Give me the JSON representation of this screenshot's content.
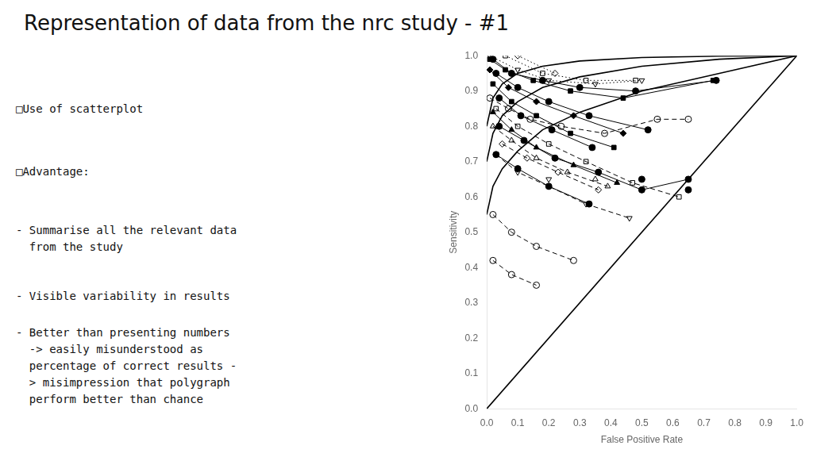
{
  "chart_data": {
    "type": "line",
    "title": "Representation of data from the nrc study - #1",
    "annotations": [
      "□Use of scatterplot",
      "□Advantage:",
      "- Summarise all the relevant data\n  from the study",
      "- Visible variability in results",
      "- Better than presenting numbers\n  -> easily misunderstood as\n  percentage of correct results -\n  > misimpression that polygraph\n  perform better than chance"
    ],
    "x_label": "False Positive Rate",
    "y_label": "Sensitivity",
    "color": "#000000",
    "grid": false,
    "xlim": [
      0,
      1
    ],
    "ylim": [
      0,
      1
    ],
    "xticks": [
      {
        "value": 0,
        "label": "0.0"
      },
      0.1,
      0.2,
      0.3,
      0.4,
      0.5,
      0.6,
      0.7,
      0.8,
      0.9,
      {
        "value": 1,
        "label": "1.0"
      }
    ],
    "yticks": [
      {
        "value": 0,
        "label": "0.0"
      },
      0.1,
      0.2,
      0.3,
      0.4,
      0.5,
      0.6,
      0.7,
      0.8,
      0.9,
      {
        "value": 1,
        "label": "1.0"
      }
    ],
    "series": [
      {
        "x": [
          0,
          1
        ],
        "values": [
          0,
          1
        ],
        "line_style": "solid",
        "marker": "none"
      },
      {
        "x": [
          0.0,
          0.02,
          0.05,
          0.1,
          0.18,
          0.3,
          0.5,
          0.75,
          1.0
        ],
        "values": [
          0.8,
          0.88,
          0.92,
          0.95,
          0.97,
          0.985,
          0.995,
          0.999,
          1.0
        ],
        "line_style": "solid",
        "marker": "none"
      },
      {
        "x": [
          0.0,
          0.02,
          0.05,
          0.1,
          0.18,
          0.3,
          0.5,
          0.75,
          1.0
        ],
        "values": [
          0.7,
          0.78,
          0.83,
          0.87,
          0.91,
          0.94,
          0.97,
          0.99,
          1.0
        ],
        "line_style": "solid",
        "marker": "none"
      },
      {
        "x": [
          0.0,
          0.02,
          0.05,
          0.1,
          0.18,
          0.3,
          0.5,
          0.75,
          1.0
        ],
        "values": [
          0.55,
          0.63,
          0.68,
          0.73,
          0.79,
          0.84,
          0.9,
          0.95,
          1.0
        ],
        "line_style": "solid",
        "marker": "none"
      },
      {
        "x": [
          0.01,
          0.1,
          0.2,
          0.35,
          0.5
        ],
        "values": [
          1.0,
          0.96,
          0.93,
          0.92,
          0.93
        ],
        "line_style": "dotted",
        "marker": "open-triangle-down"
      },
      {
        "x": [
          0.06,
          0.18,
          0.32,
          0.48
        ],
        "values": [
          1.0,
          0.95,
          0.93,
          0.93
        ],
        "line_style": "dotted",
        "marker": "open-square"
      },
      {
        "x": [
          0.1,
          0.22
        ],
        "values": [
          1.0,
          0.95
        ],
        "line_style": "dotted",
        "marker": "open-diamond"
      },
      {
        "x": [
          0.01,
          0.07,
          0.14,
          0.24,
          0.38,
          0.55,
          0.65
        ],
        "values": [
          0.88,
          0.85,
          0.82,
          0.8,
          0.78,
          0.82,
          0.82
        ],
        "line_style": "dashed",
        "marker": "open-circle"
      },
      {
        "x": [
          0.03,
          0.1,
          0.2,
          0.32,
          0.47,
          0.62
        ],
        "values": [
          0.85,
          0.8,
          0.75,
          0.7,
          0.64,
          0.6
        ],
        "line_style": "dashed",
        "marker": "open-square"
      },
      {
        "x": [
          0.02,
          0.08,
          0.16,
          0.26,
          0.39
        ],
        "values": [
          0.8,
          0.76,
          0.71,
          0.67,
          0.63
        ],
        "line_style": "dashed",
        "marker": "open-triangle-up"
      },
      {
        "x": [
          0.05,
          0.13,
          0.23,
          0.36
        ],
        "values": [
          0.75,
          0.71,
          0.67,
          0.62
        ],
        "line_style": "dashed",
        "marker": "open-diamond"
      },
      {
        "x": [
          0.03,
          0.1,
          0.2,
          0.32,
          0.46
        ],
        "values": [
          0.72,
          0.67,
          0.63,
          0.58,
          0.54
        ],
        "line_style": "dashed",
        "marker": "open-triangle-down"
      },
      {
        "x": [
          0.02,
          0.08,
          0.16,
          0.28
        ],
        "values": [
          0.55,
          0.5,
          0.46,
          0.42
        ],
        "line_style": "dashed",
        "marker": "open-circle"
      },
      {
        "x": [
          0.02,
          0.08,
          0.16
        ],
        "values": [
          0.42,
          0.38,
          0.35
        ],
        "line_style": "dashed",
        "marker": "open-circle"
      },
      {
        "x": [
          0.02,
          0.08,
          0.18,
          0.3,
          0.48,
          0.74
        ],
        "values": [
          0.99,
          0.95,
          0.93,
          0.91,
          0.9,
          0.93
        ],
        "line_style": "solid",
        "marker": "circle"
      },
      {
        "x": [
          0.03,
          0.1,
          0.2,
          0.33,
          0.52
        ],
        "values": [
          0.95,
          0.91,
          0.87,
          0.83,
          0.79
        ],
        "line_style": "solid",
        "marker": "circle"
      },
      {
        "x": [
          0.04,
          0.11,
          0.21,
          0.34
        ],
        "values": [
          0.88,
          0.83,
          0.79,
          0.74
        ],
        "line_style": "solid",
        "marker": "circle"
      },
      {
        "x": [
          0.04,
          0.12,
          0.22,
          0.36,
          0.5,
          0.65
        ],
        "values": [
          0.8,
          0.76,
          0.71,
          0.67,
          0.62,
          0.65
        ],
        "line_style": "solid",
        "marker": "circle"
      },
      {
        "x": [
          0.03,
          0.1,
          0.2,
          0.33
        ],
        "values": [
          0.72,
          0.68,
          0.63,
          0.58
        ],
        "line_style": "solid",
        "marker": "circle"
      },
      {
        "x": [
          0.01,
          0.06,
          0.15,
          0.27,
          0.44,
          0.73
        ],
        "values": [
          0.99,
          0.96,
          0.93,
          0.9,
          0.88,
          0.93
        ],
        "line_style": "solid",
        "marker": "square"
      },
      {
        "x": [
          0.02,
          0.08,
          0.16,
          0.27,
          0.41
        ],
        "values": [
          0.92,
          0.87,
          0.83,
          0.78,
          0.74
        ],
        "line_style": "solid",
        "marker": "square"
      },
      {
        "x": [
          0.02,
          0.08,
          0.16,
          0.28,
          0.42
        ],
        "values": [
          0.84,
          0.79,
          0.74,
          0.69,
          0.64
        ],
        "line_style": "solid",
        "marker": "triangle-up"
      },
      {
        "x": [
          0.01,
          0.07,
          0.16,
          0.28,
          0.44
        ],
        "values": [
          0.96,
          0.91,
          0.87,
          0.83,
          0.78
        ],
        "line_style": "solid",
        "marker": "diamond"
      },
      {
        "x": [
          0.5
        ],
        "values": [
          0.65
        ],
        "type": "scatter",
        "marker": "circle"
      },
      {
        "x": [
          0.35
        ],
        "values": [
          0.65
        ],
        "type": "scatter",
        "marker": "open-triangle-up"
      },
      {
        "x": [
          0.2
        ],
        "values": [
          0.65
        ],
        "type": "scatter",
        "marker": "open-triangle-down"
      },
      {
        "x": [
          0.65
        ],
        "values": [
          0.62
        ],
        "type": "scatter",
        "marker": "circle"
      }
    ]
  }
}
